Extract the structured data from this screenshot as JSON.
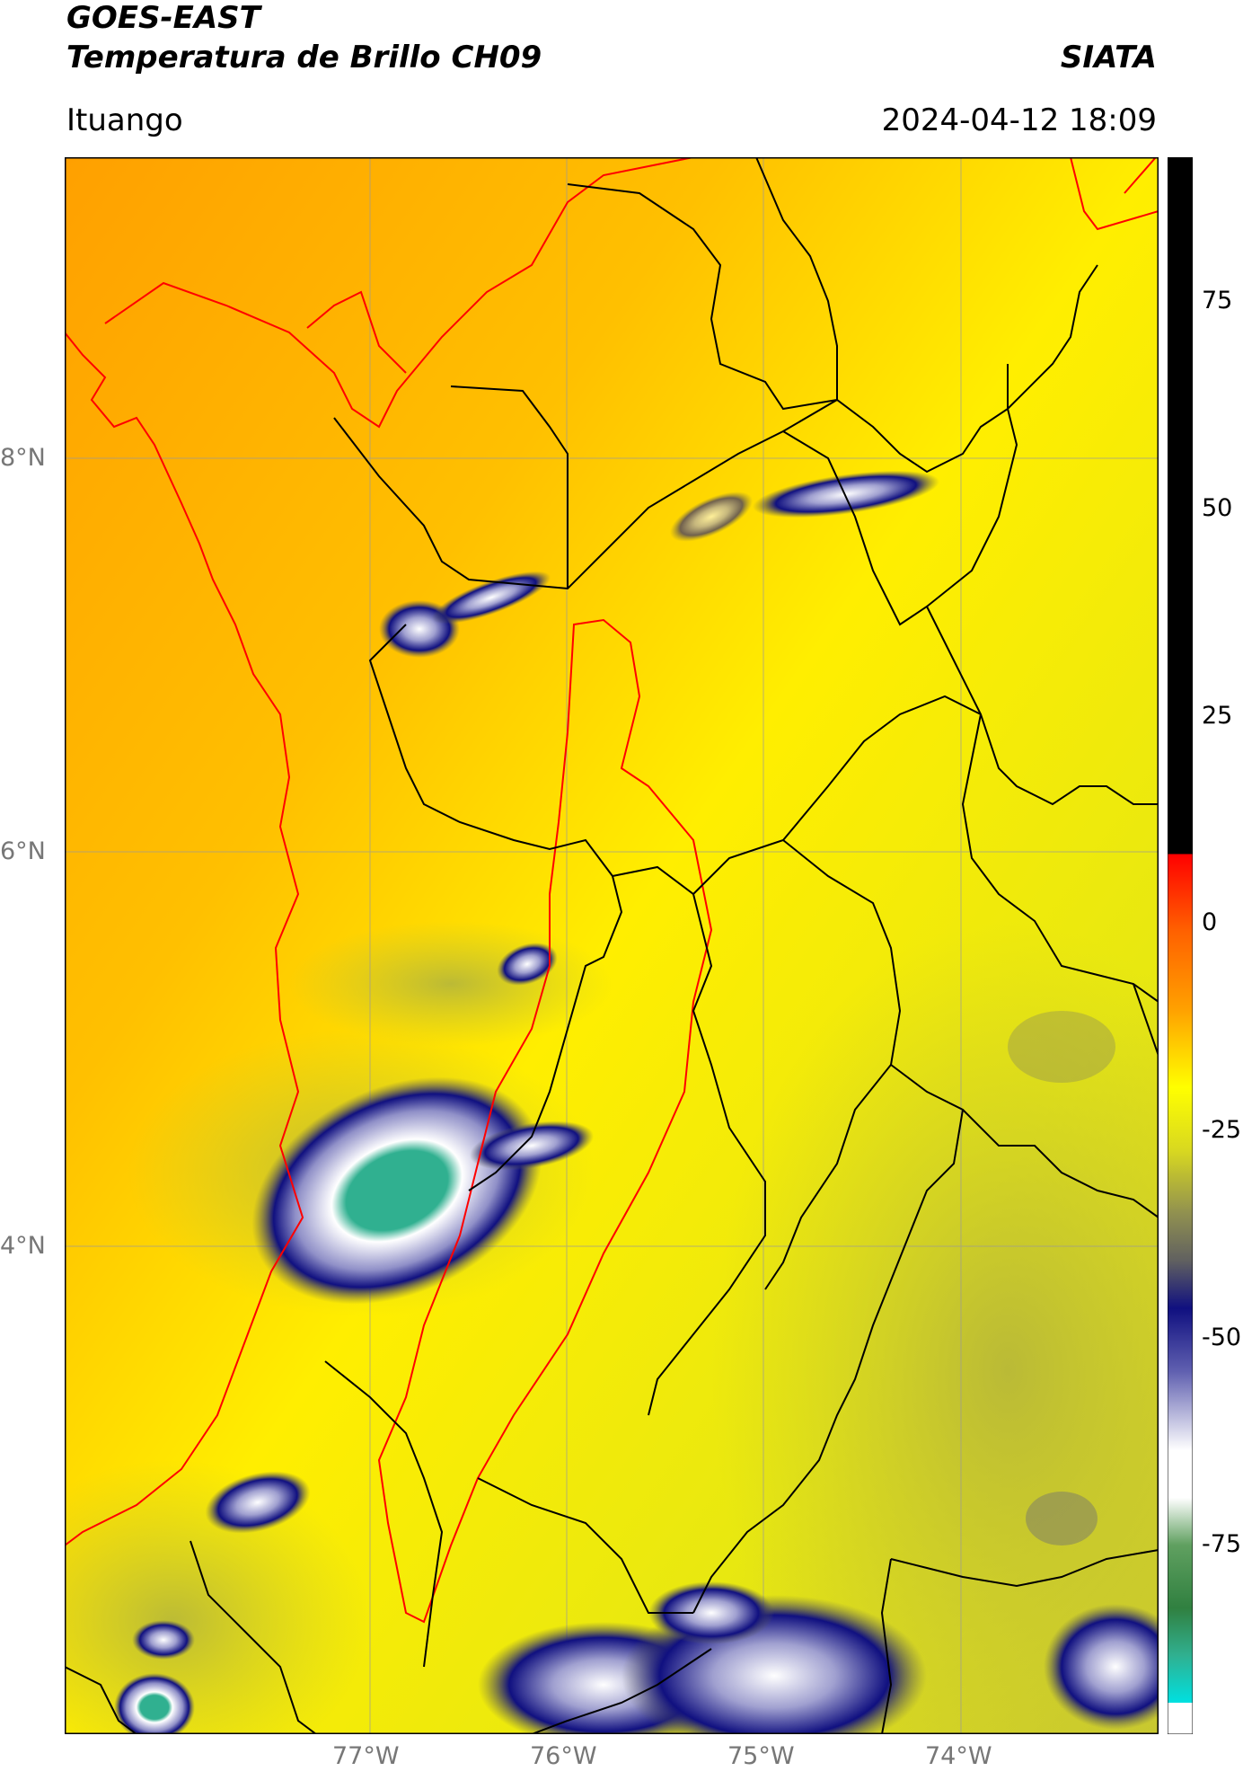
{
  "header": {
    "satellite": "GOES-EAST",
    "product": "Temperatura de Brillo CH09",
    "brand": "SIATA",
    "location": "Ituango",
    "timestamp": "2024-04-12 18:09"
  },
  "map": {
    "lat_labels": [
      "8°N",
      "6°N",
      "4°N"
    ],
    "lon_labels": [
      "77°W",
      "76°W",
      "75°W",
      "74°W"
    ]
  },
  "colorbar": {
    "ticks": [
      "75",
      "50",
      "25",
      "0",
      "-25",
      "-50",
      "-75"
    ]
  },
  "colors": {
    "warm_orange": "#ffa500",
    "yellow": "#ffff00",
    "olive": "#c8c828",
    "navy": "#101080",
    "teal": "#30b090",
    "border_black": "#000000",
    "border_red": "#ff0000"
  }
}
